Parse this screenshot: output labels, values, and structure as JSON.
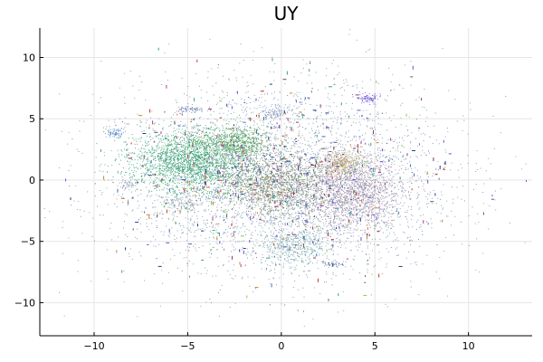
{
  "chart_data": {
    "type": "scatter",
    "title": "UY",
    "xlabel": "",
    "ylabel": "",
    "xlim": [
      -12.9,
      13.4
    ],
    "ylim": [
      -12.7,
      12.4
    ],
    "xticks": [
      -10,
      -5,
      0,
      5,
      10
    ],
    "yticks": [
      -10,
      -5,
      0,
      5,
      10
    ],
    "grid": true,
    "legend": "none",
    "colors": {
      "green": "#2a9d6c",
      "olive": "#6a8b4e",
      "mauve": "#9b85a3",
      "blue_gray": "#6a86a8",
      "tan": "#b9a46f",
      "teal": "#5f9ea3",
      "violet": "#6a4bd6",
      "magenta": "#b03aa0",
      "red": "#c0392b",
      "lime": "#7fcf5a",
      "dark_blue": "#1f3d8a"
    },
    "clusters": [
      {
        "name": "green-core",
        "cx": -4.8,
        "cy": 1.5,
        "sx": 1.6,
        "sy": 1.3,
        "n": 2200,
        "color": "#2a9d6c"
      },
      {
        "name": "green-right",
        "cx": -2.4,
        "cy": 3.1,
        "sx": 0.9,
        "sy": 0.7,
        "n": 700,
        "color": "#4c9a56"
      },
      {
        "name": "olive-center",
        "cx": -0.2,
        "cy": -0.4,
        "sx": 1.4,
        "sy": 1.3,
        "n": 1300,
        "color": "#6f7b5f"
      },
      {
        "name": "mauve-right",
        "cx": 3.8,
        "cy": -0.9,
        "sx": 1.3,
        "sy": 1.6,
        "n": 1600,
        "color": "#9b85a3"
      },
      {
        "name": "tan-right",
        "cx": 3.2,
        "cy": 1.4,
        "sx": 0.6,
        "sy": 0.5,
        "n": 350,
        "color": "#b9a46f"
      },
      {
        "name": "teal-bottom",
        "cx": 0.6,
        "cy": -5.3,
        "sx": 0.9,
        "sy": 0.8,
        "n": 420,
        "color": "#5f9ea3"
      },
      {
        "name": "bluegray-diffuse",
        "cx": 0.0,
        "cy": 0.0,
        "sx": 4.2,
        "sy": 3.6,
        "n": 2600,
        "color": "#6a86a8"
      },
      {
        "name": "bluegray-halo",
        "cx": 0.0,
        "cy": 0.0,
        "sx": 5.2,
        "sy": 4.6,
        "n": 900,
        "color": "#7d8fa6"
      },
      {
        "name": "blue-island",
        "cx": -8.9,
        "cy": 3.9,
        "sx": 0.25,
        "sy": 0.2,
        "n": 80,
        "color": "#5b8fc7"
      },
      {
        "name": "violet-island",
        "cx": 4.6,
        "cy": 6.7,
        "sx": 0.3,
        "sy": 0.2,
        "n": 90,
        "color": "#6a4bd6"
      },
      {
        "name": "slate-island",
        "cx": -4.9,
        "cy": 5.8,
        "sx": 0.35,
        "sy": 0.15,
        "n": 70,
        "color": "#6c7fb0"
      },
      {
        "name": "slate-island-2",
        "cx": -0.4,
        "cy": 5.6,
        "sx": 0.4,
        "sy": 0.3,
        "n": 90,
        "color": "#7a8fb9"
      },
      {
        "name": "green-patch",
        "cx": -4.5,
        "cy": 3.2,
        "sx": 0.25,
        "sy": 0.25,
        "n": 60,
        "color": "#4a9e5c"
      },
      {
        "name": "gray-island",
        "cx": -8.3,
        "cy": -0.4,
        "sx": 0.2,
        "sy": 0.2,
        "n": 40,
        "color": "#7b8aa5"
      },
      {
        "name": "dark-blue-island",
        "cx": 2.8,
        "cy": -6.8,
        "sx": 0.25,
        "sy": 0.1,
        "n": 40,
        "color": "#2f4a8f"
      },
      {
        "name": "gray-left-blob",
        "cx": -5.3,
        "cy": -1.8,
        "sx": 0.6,
        "sy": 0.4,
        "n": 120,
        "color": "#7b8f9a"
      }
    ],
    "scatter_bits": {
      "n": 700,
      "sx": 5.5,
      "sy": 5.0,
      "palette": [
        "#b03aa0",
        "#c0392b",
        "#7fcf5a",
        "#1f3d8a",
        "#6a4bd6",
        "#3aa37a",
        "#c77e2d",
        "#4b6ab8",
        "#8a3c6b",
        "#5b5b5b"
      ]
    }
  }
}
